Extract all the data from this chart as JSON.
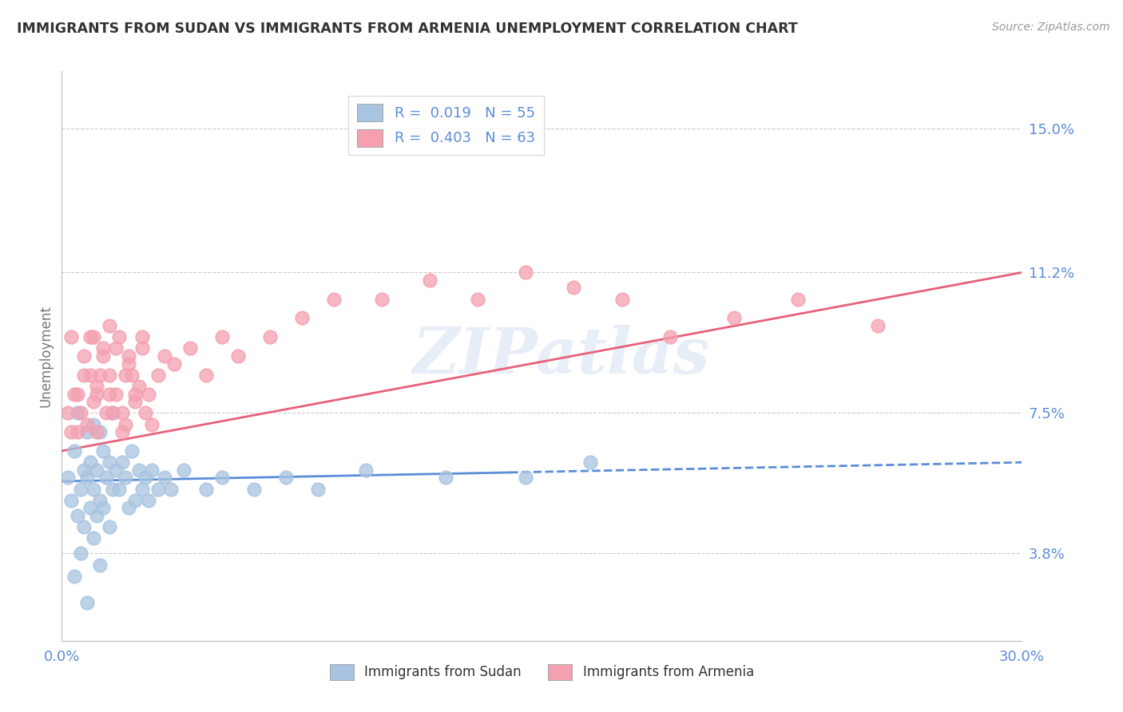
{
  "title": "IMMIGRANTS FROM SUDAN VS IMMIGRANTS FROM ARMENIA UNEMPLOYMENT CORRELATION CHART",
  "source": "Source: ZipAtlas.com",
  "ylabel": "Unemployment",
  "y_tick_values": [
    3.8,
    7.5,
    11.2,
    15.0
  ],
  "y_tick_labels": [
    "3.8%",
    "7.5%",
    "11.2%",
    "15.0%"
  ],
  "xlim": [
    0.0,
    30.0
  ],
  "ylim": [
    1.5,
    16.5
  ],
  "legend_label_sudan": "Immigrants from Sudan",
  "legend_label_armenia": "Immigrants from Armenia",
  "sudan_R": "0.019",
  "sudan_N": "55",
  "armenia_R": "0.403",
  "armenia_N": "63",
  "color_sudan": "#a8c4e0",
  "color_armenia": "#f4a0b0",
  "color_sudan_line": "#5b8dd9",
  "color_armenia_line": "#e8607a",
  "color_axis_labels": "#5b8dd9",
  "color_title": "#333333",
  "background_color": "#ffffff",
  "watermark_text": "ZIPatlas",
  "sudan_x": [
    0.2,
    0.3,
    0.4,
    0.5,
    0.5,
    0.6,
    0.7,
    0.7,
    0.8,
    0.8,
    0.9,
    0.9,
    1.0,
    1.0,
    1.1,
    1.1,
    1.2,
    1.2,
    1.3,
    1.3,
    1.4,
    1.5,
    1.5,
    1.6,
    1.6,
    1.7,
    1.8,
    1.9,
    2.0,
    2.1,
    2.2,
    2.3,
    2.4,
    2.5,
    2.6,
    2.7,
    2.8,
    3.0,
    3.2,
    3.4,
    3.8,
    4.5,
    5.0,
    6.0,
    7.0,
    8.0,
    9.5,
    12.0,
    14.5,
    16.5,
    0.4,
    0.6,
    0.8,
    1.0,
    1.2
  ],
  "sudan_y": [
    5.8,
    5.2,
    6.5,
    7.5,
    4.8,
    5.5,
    6.0,
    4.5,
    5.8,
    7.0,
    5.0,
    6.2,
    5.5,
    7.2,
    6.0,
    4.8,
    5.2,
    7.0,
    6.5,
    5.0,
    5.8,
    6.2,
    4.5,
    5.5,
    7.5,
    6.0,
    5.5,
    6.2,
    5.8,
    5.0,
    6.5,
    5.2,
    6.0,
    5.5,
    5.8,
    5.2,
    6.0,
    5.5,
    5.8,
    5.5,
    6.0,
    5.5,
    5.8,
    5.5,
    5.8,
    5.5,
    6.0,
    5.8,
    5.8,
    6.2,
    3.2,
    3.8,
    2.5,
    4.2,
    3.5
  ],
  "armenia_x": [
    0.2,
    0.3,
    0.4,
    0.5,
    0.6,
    0.7,
    0.8,
    0.9,
    1.0,
    1.0,
    1.1,
    1.1,
    1.2,
    1.3,
    1.4,
    1.5,
    1.5,
    1.6,
    1.7,
    1.8,
    1.9,
    2.0,
    2.0,
    2.1,
    2.2,
    2.3,
    2.4,
    2.5,
    2.6,
    2.7,
    2.8,
    3.0,
    3.2,
    3.5,
    4.0,
    4.5,
    5.0,
    5.5,
    6.5,
    7.5,
    8.5,
    10.0,
    11.5,
    13.0,
    14.5,
    16.0,
    17.5,
    19.0,
    21.0,
    23.0,
    25.5,
    0.3,
    0.5,
    0.7,
    0.9,
    1.1,
    1.3,
    1.5,
    1.7,
    1.9,
    2.1,
    2.3,
    2.5
  ],
  "armenia_y": [
    7.5,
    9.5,
    8.0,
    7.0,
    7.5,
    9.0,
    7.2,
    8.5,
    7.8,
    9.5,
    8.2,
    7.0,
    8.5,
    9.2,
    7.5,
    8.0,
    9.8,
    7.5,
    8.0,
    9.5,
    7.0,
    8.5,
    7.2,
    9.0,
    8.5,
    7.8,
    8.2,
    9.5,
    7.5,
    8.0,
    7.2,
    8.5,
    9.0,
    8.8,
    9.2,
    8.5,
    9.5,
    9.0,
    9.5,
    10.0,
    10.5,
    10.5,
    11.0,
    10.5,
    11.2,
    10.8,
    10.5,
    9.5,
    10.0,
    10.5,
    9.8,
    7.0,
    8.0,
    8.5,
    9.5,
    8.0,
    9.0,
    8.5,
    9.2,
    7.5,
    8.8,
    8.0,
    9.2
  ],
  "sudan_line_x0": 0.0,
  "sudan_line_y0": 5.7,
  "sudan_line_x1": 30.0,
  "sudan_line_y1": 6.2,
  "sudan_line_solid_x": 14.0,
  "armenia_line_x0": 0.0,
  "armenia_line_y0": 6.5,
  "armenia_line_x1": 30.0,
  "armenia_line_y1": 11.2
}
